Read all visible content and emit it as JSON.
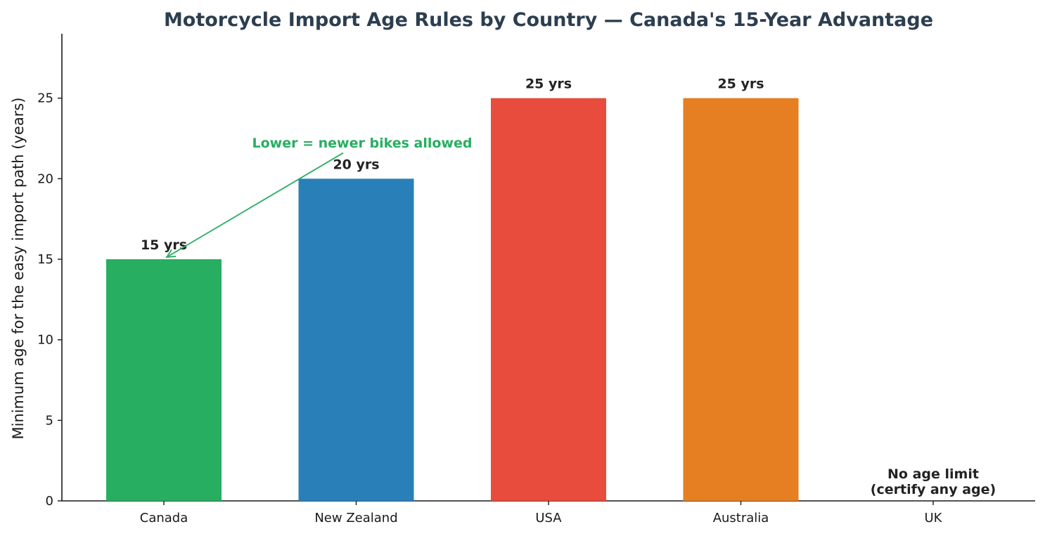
{
  "chart_data": {
    "type": "bar",
    "title": "Motorcycle Import Age Rules by Country — Canada's 15-Year Advantage",
    "xlabel": "",
    "ylabel": "Minimum age for the easy import path (years)",
    "categories": [
      "Canada",
      "New Zealand",
      "USA",
      "Australia",
      "UK"
    ],
    "values": [
      15,
      20,
      25,
      25,
      0
    ],
    "data_labels": [
      "15 yrs",
      "20 yrs",
      "25 yrs",
      "25 yrs",
      "No age limit\n(certify any age)"
    ],
    "colors": [
      "#27ae60",
      "#2980b9",
      "#e74c3c",
      "#e67e22",
      "#95a5a6"
    ],
    "ylim": [
      0,
      29
    ],
    "yticks": [
      0,
      5,
      10,
      15,
      20,
      25
    ],
    "grid": false,
    "legend": "none",
    "annotation": {
      "text": "Lower = newer bikes allowed",
      "color": "#27ae60",
      "points_to": {
        "category": "Canada",
        "value": 15
      },
      "text_anchor_value": 21.6
    }
  }
}
